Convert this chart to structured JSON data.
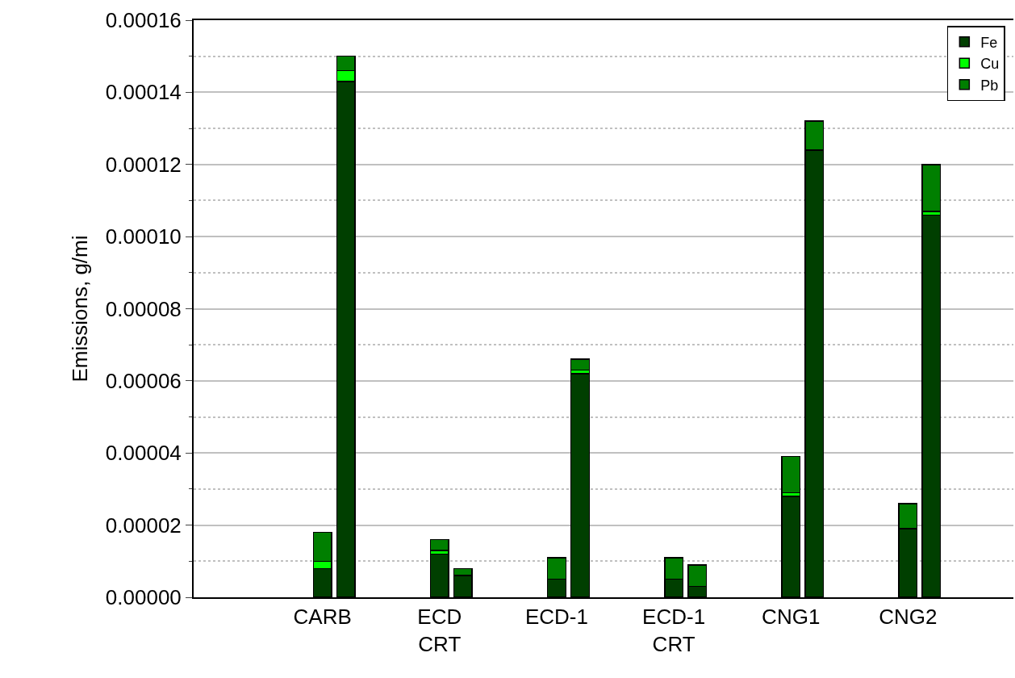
{
  "chart_data": {
    "type": "bar",
    "ylabel": "Emissions, g/mi",
    "categories": [
      null,
      null,
      null,
      null,
      null,
      "CARB",
      null,
      null,
      null,
      null,
      "ECD\nCRT",
      null,
      null,
      null,
      null,
      "ECD-1",
      null,
      null,
      null,
      null,
      "ECD-1\nCRT",
      null,
      null,
      null,
      null,
      "CNG1",
      null,
      null,
      null,
      null,
      "CNG2",
      null,
      null,
      null,
      null
    ],
    "stacked": true,
    "series": [
      {
        "name": "Fe",
        "color": "#003f00",
        "values": [
          null,
          null,
          null,
          null,
          null,
          8e-06,
          0.000143,
          null,
          null,
          null,
          1.2e-05,
          6e-06,
          null,
          null,
          null,
          5e-06,
          6.2e-05,
          null,
          null,
          null,
          5e-06,
          3e-06,
          null,
          null,
          null,
          2.8e-05,
          0.000124,
          null,
          null,
          null,
          1.9e-05,
          0.000106,
          null,
          null,
          null
        ]
      },
      {
        "name": "Cu",
        "color": "#00ff00",
        "values": [
          null,
          null,
          null,
          null,
          null,
          2e-06,
          3e-06,
          null,
          null,
          null,
          1e-06,
          0,
          null,
          null,
          null,
          0,
          1e-06,
          null,
          null,
          null,
          0,
          0,
          null,
          null,
          null,
          1e-06,
          0,
          null,
          null,
          null,
          0,
          1e-06,
          null,
          null,
          null
        ]
      },
      {
        "name": "Pb",
        "color": "#007f00",
        "values": [
          null,
          null,
          null,
          null,
          null,
          8e-06,
          4e-06,
          null,
          null,
          null,
          3e-06,
          2e-06,
          null,
          null,
          null,
          6e-06,
          3e-06,
          null,
          null,
          null,
          6e-06,
          6e-06,
          null,
          null,
          null,
          1e-05,
          8e-06,
          null,
          null,
          null,
          7e-06,
          1.3e-05,
          null,
          null,
          null
        ]
      }
    ],
    "ylim": [
      0,
      0.00016
    ],
    "yticks": [
      {
        "value": 0,
        "label": "0.00000"
      },
      {
        "value": 2e-05,
        "label": "0.00002"
      },
      {
        "value": 4e-05,
        "label": "0.00004"
      },
      {
        "value": 6e-05,
        "label": "0.00006"
      },
      {
        "value": 8e-05,
        "label": "0.00008"
      },
      {
        "value": 0.0001,
        "label": "0.00010"
      },
      {
        "value": 0.00012,
        "label": "0.00012"
      },
      {
        "value": 0.00014,
        "label": "0.00014"
      },
      {
        "value": 0.00016,
        "label": "0.00016"
      }
    ],
    "grid": "y",
    "legend": "top right"
  }
}
